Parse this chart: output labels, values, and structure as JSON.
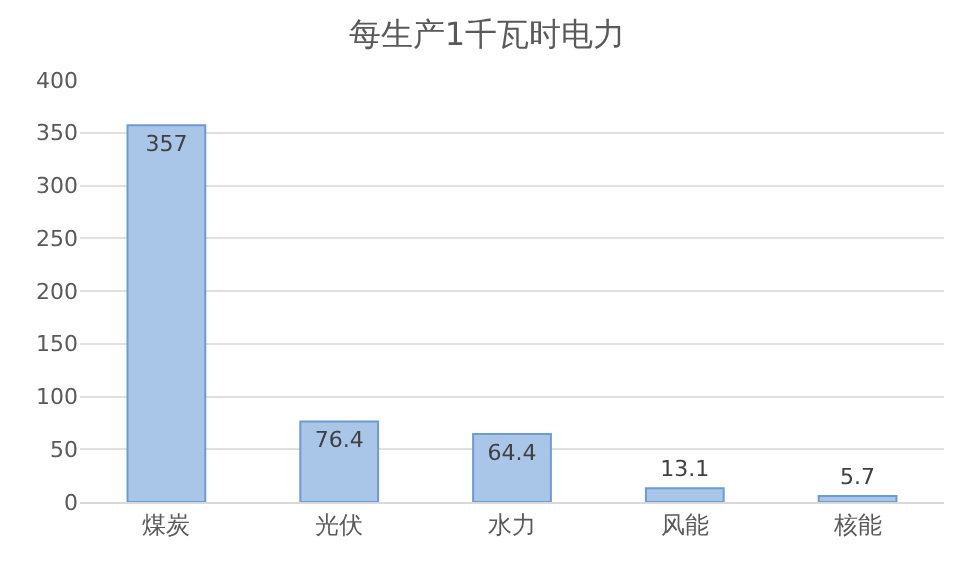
{
  "chart_data": {
    "type": "bar",
    "title": "每生产1千瓦时电力",
    "categories": [
      "煤炭",
      "光伏",
      "水力",
      "风能",
      "核能"
    ],
    "values": [
      357,
      76.4,
      64.4,
      13.1,
      5.7
    ],
    "color": "#a9c6e8",
    "ylim": [
      0,
      400
    ],
    "yticks": [
      0,
      50,
      100,
      150,
      200,
      250,
      300,
      350,
      400
    ],
    "grid": "y",
    "data_labels": true
  }
}
